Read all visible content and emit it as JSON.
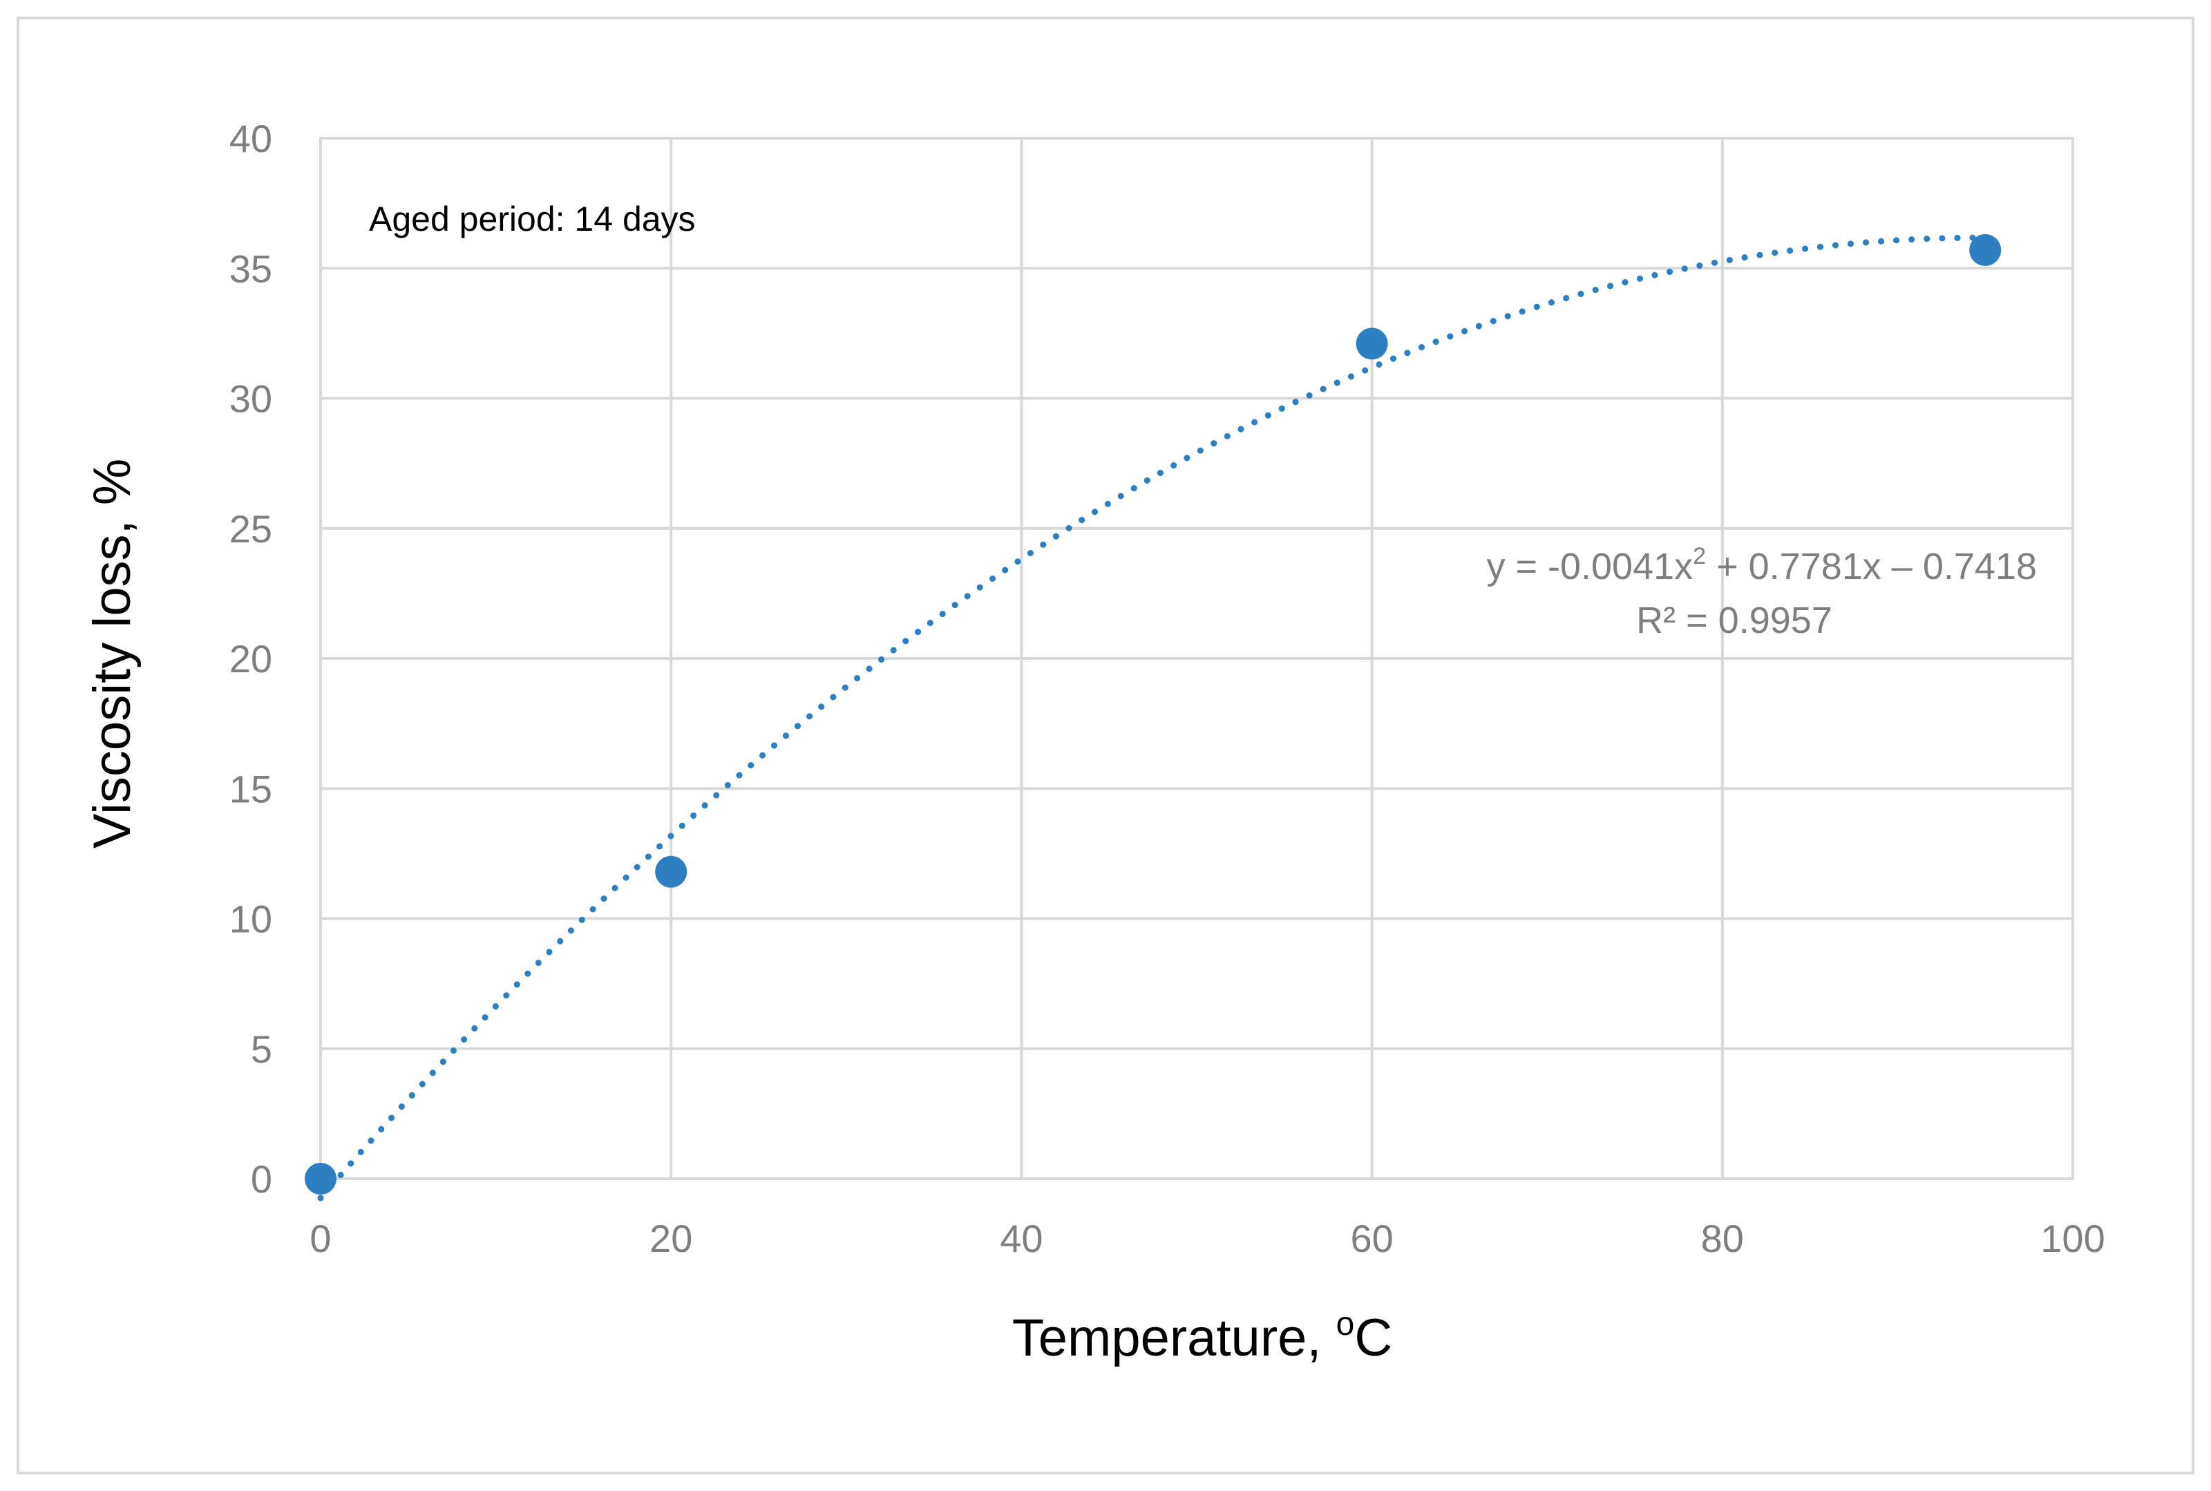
{
  "chart_data": {
    "type": "scatter",
    "title": "",
    "xlabel": "Temperature, ",
    "xlabel_sup": "o",
    "xlabel_unit": "C",
    "ylabel": "Viscosity loss, %",
    "xlim": [
      0,
      100
    ],
    "ylim": [
      0,
      40
    ],
    "x_ticks": [
      "0",
      "20",
      "40",
      "60",
      "80",
      "100"
    ],
    "y_ticks": [
      "0",
      "5",
      "10",
      "15",
      "20",
      "25",
      "30",
      "35",
      "40"
    ],
    "grid": true,
    "series": [
      {
        "name": "Viscosity loss",
        "color": "#2e7fc2",
        "points": [
          {
            "x": 0,
            "y": 0
          },
          {
            "x": 20,
            "y": 11.8
          },
          {
            "x": 60,
            "y": 32.1
          },
          {
            "x": 95,
            "y": 35.7
          }
        ]
      }
    ],
    "trendline": {
      "type": "polynomial",
      "order": 2,
      "coefficients": {
        "a": -0.0041,
        "b": 0.7781,
        "c": -0.7418
      },
      "x_range": [
        0,
        95
      ],
      "style": "dotted",
      "color": "#2e7fc2",
      "equation_label": "y = -0.0041x",
      "equation_sup": "2",
      "equation_rest": " + 0.7781x – 0.7418",
      "r2_label": "R² = 0.9957"
    },
    "annotations": [
      {
        "text": "Aged period: 14 days",
        "placement": "top-left"
      }
    ]
  }
}
